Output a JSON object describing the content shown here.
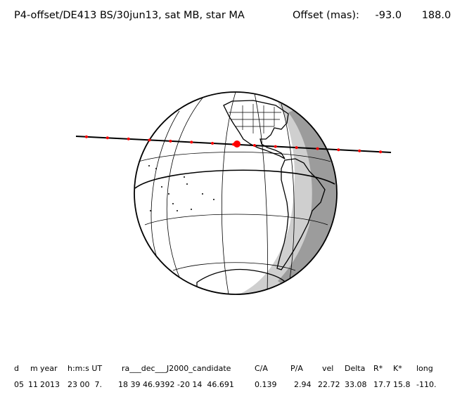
{
  "header": {
    "title": "P4-offset/DE413 BS/30jun13, sat MB, star MA",
    "offset_label": "Offset (mas):",
    "offset_x": "-93.0",
    "offset_y": "188.0"
  },
  "table": {
    "columns": [
      "d",
      "m",
      "year",
      "h:m:s UT",
      "ra___dec___J2000_candidate",
      "C/A",
      "P/A",
      "vel",
      "Delta",
      "R*",
      "K*",
      "long"
    ],
    "values": [
      "05",
      "11",
      "2013",
      "23 00  7.",
      "18 39 46.9392 -20 14  46.691",
      "0.139",
      "2.94",
      "22.72",
      "33.08",
      "17.7",
      "15.8",
      "-110."
    ]
  },
  "colors": {
    "path_line": "#000000",
    "path_points": "#ff0000",
    "night_shade": "#9c9c9c",
    "twilight_shade": "#cfcfcf"
  }
}
